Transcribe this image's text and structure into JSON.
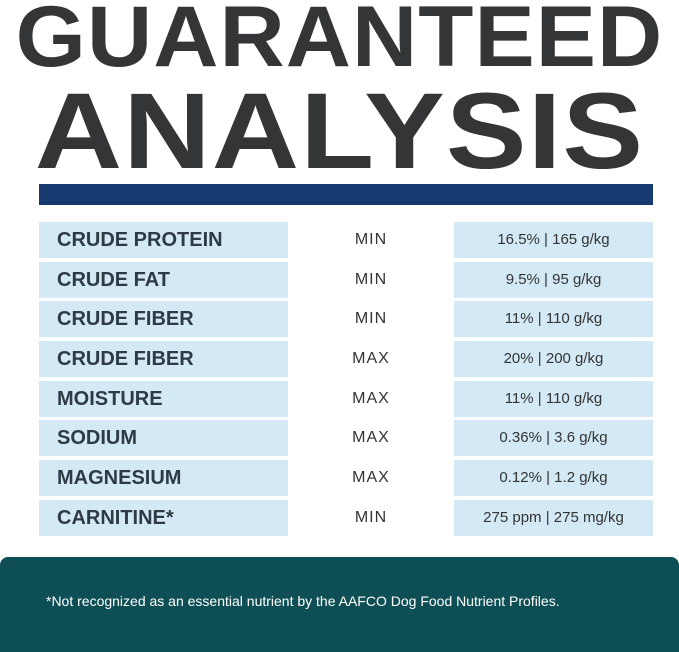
{
  "header": {
    "title_line1": "GUARANTEED",
    "title_line2": "ANALYSIS"
  },
  "table": {
    "rows": [
      [
        "CRUDE PROTEIN",
        "MIN",
        "16.5% | 165 g/kg"
      ],
      [
        "CRUDE FAT",
        "MIN",
        "9.5% | 95 g/kg"
      ],
      [
        "CRUDE FIBER",
        "MIN",
        "11% | 110 g/kg"
      ],
      [
        "CRUDE FIBER",
        "MAX",
        "20% | 200 g/kg"
      ],
      [
        "MOISTURE",
        "MAX",
        "11% | 110 g/kg"
      ],
      [
        "SODIUM",
        "MAX",
        "0.36% | 3.6 g/kg"
      ],
      [
        "MAGNESIUM",
        "MAX",
        "0.12% | 1.2 g/kg"
      ],
      [
        "CARNITINE*",
        "MIN",
        "275 ppm | 275 mg/kg"
      ]
    ]
  },
  "footer": {
    "note": "*Not recognized as an essential nutrient by the AAFCO Dog Food Nutrient Profiles."
  }
}
